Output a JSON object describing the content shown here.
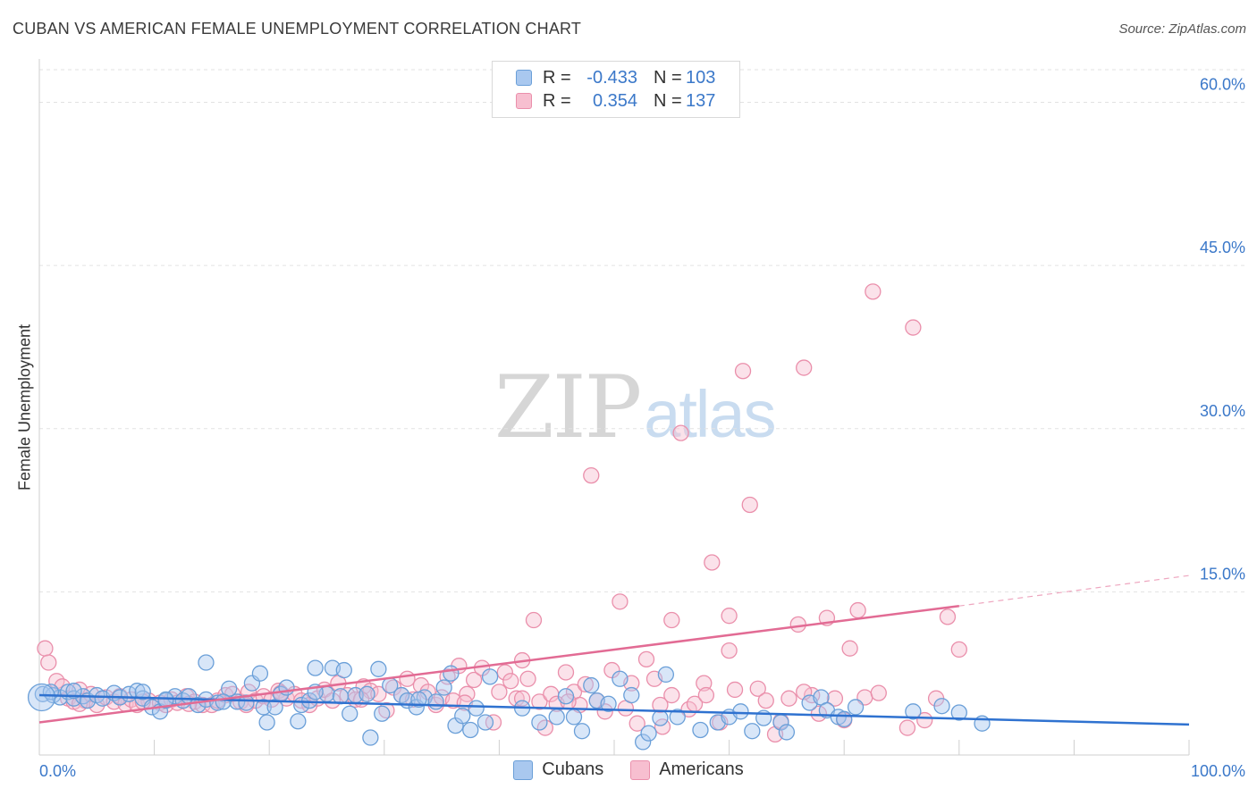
{
  "title": "CUBAN VS AMERICAN FEMALE UNEMPLOYMENT CORRELATION CHART",
  "source": "Source: ZipAtlas.com",
  "watermark": {
    "zip": "ZIP",
    "atlas": "atlas"
  },
  "legend": {
    "rows": [
      {
        "r_label": "R =",
        "r_value": "-0.433",
        "n_label": "N =",
        "n_value": "103"
      },
      {
        "r_label": "R =",
        "r_value": "0.354",
        "n_label": "N =",
        "n_value": "137"
      }
    ]
  },
  "colors": {
    "cubans_fill": "#a9c8ef",
    "cubans_stroke": "#6a9fd8",
    "cubans_line": "#2f72d0",
    "americans_fill": "#f7bfd0",
    "americans_stroke": "#ea8fab",
    "americans_line": "#e26b94",
    "axis_text": "#3b78c9",
    "grid": "#e2e2e2"
  },
  "chart_data": {
    "type": "scatter",
    "title": "CUBAN VS AMERICAN FEMALE UNEMPLOYMENT CORRELATION CHART",
    "xlabel": "",
    "ylabel": "Female Unemployment",
    "xlim": [
      0,
      100
    ],
    "ylim": [
      0,
      63
    ],
    "x_tick_labels": [
      {
        "value": 0,
        "label": "0.0%"
      },
      {
        "value": 100,
        "label": "100.0%"
      }
    ],
    "y_tick_labels": [
      {
        "value": 15,
        "label": "15.0%"
      },
      {
        "value": 30,
        "label": "30.0%"
      },
      {
        "value": 45,
        "label": "45.0%"
      },
      {
        "value": 60,
        "label": "60.0%"
      }
    ],
    "grid": true,
    "series": [
      {
        "name": "Cubans",
        "r": -0.433,
        "n": 103,
        "trend": {
          "x0": 0,
          "y0": 5.5,
          "x1": 100,
          "y1": 2.8
        },
        "points": [
          [
            0.3,
            5.6
          ],
          [
            1.2,
            5.5
          ],
          [
            1.8,
            5.3
          ],
          [
            2.5,
            5.8
          ],
          [
            3.0,
            5.2
          ],
          [
            3.8,
            5.4
          ],
          [
            4.2,
            5.0
          ],
          [
            5.0,
            5.5
          ],
          [
            5.5,
            5.2
          ],
          [
            6.5,
            5.7
          ],
          [
            7.0,
            5.3
          ],
          [
            7.8,
            5.6
          ],
          [
            8.5,
            5.9
          ],
          [
            9.0,
            5.2
          ],
          [
            9.8,
            4.4
          ],
          [
            10.5,
            4.0
          ],
          [
            11.0,
            5.0
          ],
          [
            11.8,
            5.4
          ],
          [
            12.5,
            5.0
          ],
          [
            13.0,
            5.4
          ],
          [
            13.8,
            4.6
          ],
          [
            14.5,
            5.1
          ],
          [
            15.5,
            4.8
          ],
          [
            14.5,
            8.5
          ],
          [
            16.5,
            6.1
          ],
          [
            17.2,
            4.9
          ],
          [
            18.0,
            4.8
          ],
          [
            18.5,
            6.6
          ],
          [
            19.2,
            7.5
          ],
          [
            19.5,
            4.4
          ],
          [
            19.8,
            3.0
          ],
          [
            20.5,
            4.4
          ],
          [
            21.0,
            5.6
          ],
          [
            21.5,
            6.2
          ],
          [
            22.5,
            3.1
          ],
          [
            22.8,
            4.6
          ],
          [
            23.5,
            5.0
          ],
          [
            24.0,
            8.0
          ],
          [
            25.0,
            5.6
          ],
          [
            25.5,
            8.0
          ],
          [
            26.2,
            5.4
          ],
          [
            26.5,
            7.8
          ],
          [
            27.5,
            5.5
          ],
          [
            28.5,
            5.6
          ],
          [
            28.8,
            1.6
          ],
          [
            29.5,
            7.9
          ],
          [
            29.8,
            3.8
          ],
          [
            30.5,
            6.4
          ],
          [
            31.5,
            5.5
          ],
          [
            32.0,
            5.0
          ],
          [
            32.8,
            4.4
          ],
          [
            33.5,
            5.3
          ],
          [
            34.5,
            4.9
          ],
          [
            35.2,
            6.2
          ],
          [
            35.8,
            7.5
          ],
          [
            36.2,
            2.7
          ],
          [
            36.8,
            3.6
          ],
          [
            37.5,
            2.3
          ],
          [
            38.0,
            4.3
          ],
          [
            38.8,
            3.0
          ],
          [
            39.2,
            7.2
          ],
          [
            42.0,
            4.3
          ],
          [
            43.5,
            3.0
          ],
          [
            45.0,
            3.5
          ],
          [
            45.8,
            5.4
          ],
          [
            46.5,
            3.5
          ],
          [
            47.2,
            2.2
          ],
          [
            48.0,
            6.4
          ],
          [
            48.5,
            5.0
          ],
          [
            49.5,
            4.7
          ],
          [
            50.5,
            7.0
          ],
          [
            51.5,
            5.5
          ],
          [
            52.5,
            1.2
          ],
          [
            53.0,
            2.0
          ],
          [
            54.0,
            3.4
          ],
          [
            54.5,
            7.4
          ],
          [
            55.5,
            3.5
          ],
          [
            57.5,
            2.3
          ],
          [
            59.0,
            3.0
          ],
          [
            60.0,
            3.5
          ],
          [
            61.0,
            4.0
          ],
          [
            62.0,
            2.2
          ],
          [
            63.0,
            3.4
          ],
          [
            64.5,
            3.0
          ],
          [
            65.0,
            2.1
          ],
          [
            67.0,
            4.8
          ],
          [
            68.0,
            5.3
          ],
          [
            68.5,
            4.1
          ],
          [
            69.5,
            3.5
          ],
          [
            70.0,
            3.3
          ],
          [
            71.0,
            4.4
          ],
          [
            76.0,
            4.0
          ],
          [
            78.5,
            4.5
          ],
          [
            80.0,
            3.9
          ],
          [
            82.0,
            2.9
          ],
          [
            1.0,
            5.8
          ],
          [
            3.0,
            5.9
          ],
          [
            9.0,
            5.8
          ],
          [
            11.0,
            5.1
          ],
          [
            16.0,
            4.9
          ],
          [
            27.0,
            3.8
          ],
          [
            33.0,
            5.1
          ],
          [
            24.0,
            5.8
          ]
        ]
      },
      {
        "name": "Americans",
        "r": 0.354,
        "n": 137,
        "trend": {
          "x0": 0,
          "y0": 3.0,
          "x1": 80,
          "y1": 13.7
        },
        "trend_dashed": {
          "x0": 80,
          "y0": 13.7,
          "x1": 100,
          "y1": 16.5
        },
        "points": [
          [
            0.5,
            9.8
          ],
          [
            0.8,
            8.5
          ],
          [
            1.5,
            6.8
          ],
          [
            2.0,
            6.3
          ],
          [
            2.5,
            5.2
          ],
          [
            3.0,
            4.9
          ],
          [
            3.5,
            6.0
          ],
          [
            4.0,
            5.0
          ],
          [
            4.5,
            5.6
          ],
          [
            5.0,
            4.6
          ],
          [
            5.8,
            5.3
          ],
          [
            6.5,
            4.9
          ],
          [
            7.0,
            5.4
          ],
          [
            7.5,
            4.7
          ],
          [
            8.0,
            5.1
          ],
          [
            8.5,
            4.6
          ],
          [
            9.5,
            5.0
          ],
          [
            10.5,
            4.8
          ],
          [
            11.0,
            4.6
          ],
          [
            11.5,
            5.1
          ],
          [
            12.0,
            4.8
          ],
          [
            12.8,
            5.4
          ],
          [
            13.5,
            4.9
          ],
          [
            14.2,
            4.6
          ],
          [
            15.0,
            4.6
          ],
          [
            15.5,
            5.0
          ],
          [
            16.2,
            5.5
          ],
          [
            16.8,
            5.6
          ],
          [
            17.5,
            4.9
          ],
          [
            18.2,
            5.8
          ],
          [
            18.8,
            5.0
          ],
          [
            19.5,
            5.4
          ],
          [
            20.2,
            5.1
          ],
          [
            20.8,
            5.9
          ],
          [
            21.5,
            5.2
          ],
          [
            22.2,
            5.6
          ],
          [
            22.8,
            5.0
          ],
          [
            23.5,
            4.6
          ],
          [
            24.2,
            5.2
          ],
          [
            24.8,
            6.0
          ],
          [
            25.5,
            5.0
          ],
          [
            26.0,
            6.6
          ],
          [
            26.8,
            5.5
          ],
          [
            27.5,
            5.1
          ],
          [
            28.2,
            6.3
          ],
          [
            28.8,
            5.9
          ],
          [
            29.5,
            5.6
          ],
          [
            30.2,
            4.1
          ],
          [
            30.8,
            6.2
          ],
          [
            31.5,
            5.5
          ],
          [
            32.0,
            7.0
          ],
          [
            32.5,
            5.1
          ],
          [
            33.2,
            6.4
          ],
          [
            33.8,
            5.8
          ],
          [
            34.5,
            4.6
          ],
          [
            35.0,
            5.3
          ],
          [
            35.5,
            7.2
          ],
          [
            36.0,
            5.0
          ],
          [
            36.5,
            8.2
          ],
          [
            37.2,
            5.6
          ],
          [
            37.8,
            6.9
          ],
          [
            38.5,
            8.0
          ],
          [
            39.5,
            3.0
          ],
          [
            40.0,
            5.8
          ],
          [
            40.5,
            7.6
          ],
          [
            41.0,
            6.8
          ],
          [
            41.5,
            5.2
          ],
          [
            42.0,
            8.7
          ],
          [
            42.5,
            7.0
          ],
          [
            43.0,
            12.4
          ],
          [
            43.5,
            4.9
          ],
          [
            44.0,
            2.5
          ],
          [
            44.5,
            5.6
          ],
          [
            45.0,
            4.7
          ],
          [
            45.8,
            7.6
          ],
          [
            46.5,
            5.8
          ],
          [
            47.0,
            4.6
          ],
          [
            47.5,
            6.5
          ],
          [
            48.0,
            25.7
          ],
          [
            48.5,
            5.0
          ],
          [
            49.2,
            4.0
          ],
          [
            49.8,
            7.8
          ],
          [
            50.5,
            14.1
          ],
          [
            51.0,
            4.3
          ],
          [
            51.5,
            6.6
          ],
          [
            52.0,
            2.9
          ],
          [
            52.8,
            8.8
          ],
          [
            53.5,
            7.0
          ],
          [
            54.2,
            2.6
          ],
          [
            55.0,
            12.4
          ],
          [
            55.8,
            29.6
          ],
          [
            56.5,
            4.2
          ],
          [
            57.0,
            4.7
          ],
          [
            57.8,
            6.6
          ],
          [
            58.5,
            17.7
          ],
          [
            59.2,
            3.0
          ],
          [
            60.0,
            9.6
          ],
          [
            60.5,
            6.0
          ],
          [
            61.2,
            35.3
          ],
          [
            61.8,
            23.0
          ],
          [
            62.5,
            6.1
          ],
          [
            63.2,
            5.0
          ],
          [
            64.0,
            1.9
          ],
          [
            64.5,
            3.1
          ],
          [
            65.2,
            5.2
          ],
          [
            66.0,
            12.0
          ],
          [
            66.5,
            35.6
          ],
          [
            67.2,
            5.5
          ],
          [
            67.8,
            3.8
          ],
          [
            68.5,
            12.6
          ],
          [
            69.2,
            5.2
          ],
          [
            70.0,
            3.2
          ],
          [
            71.2,
            13.3
          ],
          [
            71.8,
            5.3
          ],
          [
            72.5,
            42.6
          ],
          [
            73.0,
            5.7
          ],
          [
            75.5,
            2.5
          ],
          [
            76.0,
            39.3
          ],
          [
            77.0,
            3.2
          ],
          [
            78.0,
            5.2
          ],
          [
            79.0,
            12.7
          ],
          [
            80.0,
            9.7
          ],
          [
            60.0,
            12.8
          ],
          [
            55.0,
            5.5
          ],
          [
            46.0,
            4.9
          ],
          [
            42.0,
            5.2
          ],
          [
            37.0,
            4.8
          ],
          [
            28.0,
            5.1
          ],
          [
            21.0,
            5.7
          ],
          [
            18.0,
            4.6
          ],
          [
            9.0,
            4.9
          ],
          [
            13.0,
            4.7
          ],
          [
            66.5,
            5.8
          ],
          [
            70.5,
            9.8
          ],
          [
            58.0,
            5.5
          ],
          [
            54.0,
            4.6
          ],
          [
            3.5,
            4.7
          ]
        ]
      }
    ]
  }
}
